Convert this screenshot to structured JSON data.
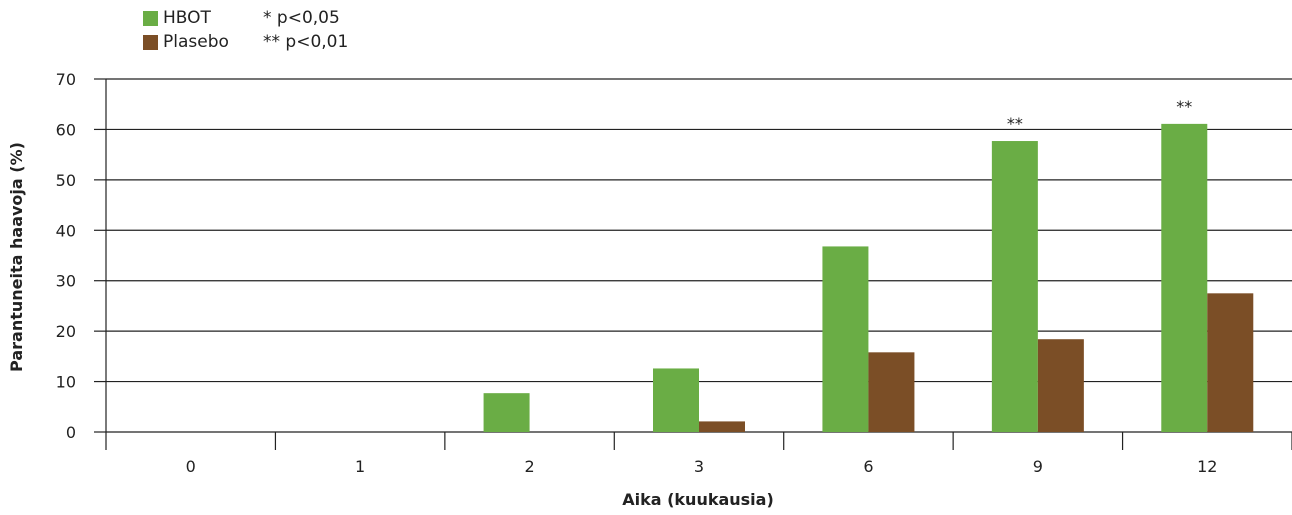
{
  "chart_data": {
    "type": "bar",
    "categories": [
      "0",
      "1",
      "2",
      "3",
      "6",
      "9",
      "12"
    ],
    "series": [
      {
        "name": "HBOT",
        "values": [
          0,
          0,
          7.7,
          12.6,
          36.8,
          57.7,
          61.1
        ]
      },
      {
        "name": "Plasebo",
        "values": [
          0,
          0,
          0,
          2.1,
          15.8,
          18.4,
          27.5
        ]
      }
    ],
    "annotations": [
      "",
      "",
      "",
      "",
      "",
      "**",
      "**"
    ],
    "xlabel": "Aika (kuukausia)",
    "ylabel": "Parantuneita haavoja (%)",
    "ylim": [
      0,
      70
    ],
    "yticks": [
      0,
      10,
      20,
      30,
      40,
      50,
      60,
      70
    ],
    "grid": true,
    "legend_position": "top-left",
    "colors": {
      "HBOT": "#6aad45",
      "Plasebo": "#7b4e26",
      "axis": "#222222"
    }
  },
  "legend": {
    "items": [
      {
        "label": "HBOT",
        "note": "* p<0,05"
      },
      {
        "label": "Plasebo",
        "note": "** p<0,01"
      }
    ]
  }
}
